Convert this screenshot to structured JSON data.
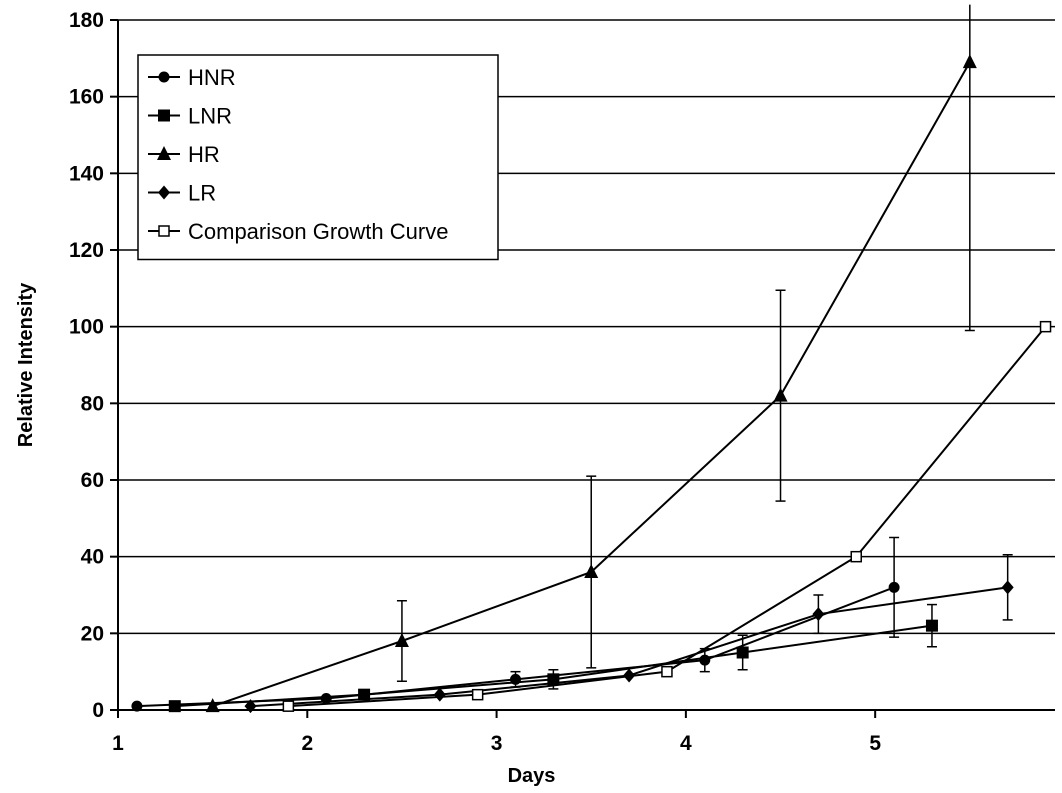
{
  "chart_data": {
    "type": "line",
    "xlabel": "Days",
    "ylabel": "Relative Intensity",
    "xlim": [
      1,
      5.95
    ],
    "ylim": [
      0,
      180
    ],
    "xticks": [
      1,
      2,
      3,
      4,
      5
    ],
    "yticks": [
      0,
      20,
      40,
      60,
      80,
      100,
      120,
      140,
      160,
      180
    ],
    "grid": "horizontal",
    "legend_position": "top-left",
    "series": [
      {
        "name": "HNR",
        "marker": "filled-circle",
        "x": [
          1.1,
          2.1,
          3.1,
          4.1,
          5.1
        ],
        "y": [
          1,
          3,
          8,
          13,
          32
        ],
        "error": [
          null,
          null,
          2,
          3,
          13
        ]
      },
      {
        "name": "LNR",
        "marker": "filled-square",
        "x": [
          1.3,
          2.3,
          3.3,
          4.3,
          5.3
        ],
        "y": [
          1,
          4,
          8,
          15,
          22
        ],
        "error": [
          null,
          null,
          2.5,
          4.5,
          5.5
        ]
      },
      {
        "name": "HR",
        "marker": "filled-triangle",
        "x": [
          1.5,
          2.5,
          3.5,
          4.5,
          5.5
        ],
        "y": [
          1,
          18,
          36,
          82,
          169
        ],
        "error": [
          null,
          10.5,
          25,
          27.5,
          70
        ]
      },
      {
        "name": "LR",
        "marker": "filled-diamond",
        "x": [
          1.7,
          2.7,
          3.7,
          4.7,
          5.7
        ],
        "y": [
          1,
          4,
          9,
          25,
          32
        ],
        "error": [
          null,
          null,
          null,
          5,
          8.5
        ]
      },
      {
        "name": "Comparison Growth Curve",
        "marker": "open-square",
        "x": [
          1.9,
          2.9,
          3.9,
          4.9,
          5.9
        ],
        "y": [
          1,
          4,
          10,
          40,
          100
        ],
        "error": [
          null,
          null,
          null,
          null,
          null
        ]
      }
    ]
  }
}
